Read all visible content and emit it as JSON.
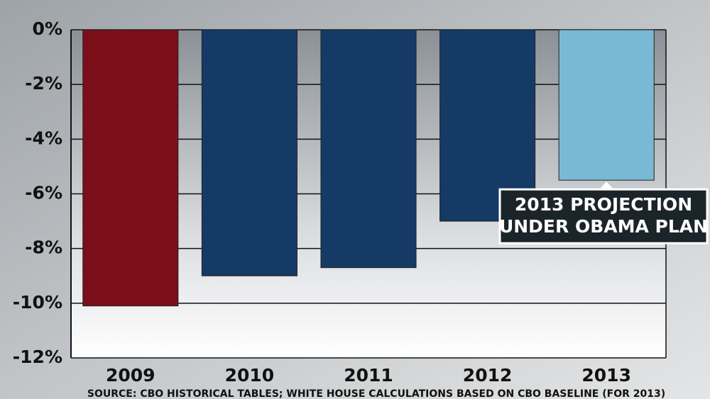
{
  "chart_data": {
    "type": "bar",
    "categories": [
      "2009",
      "2010",
      "2011",
      "2012",
      "2013"
    ],
    "values": [
      -10.1,
      -9.0,
      -8.7,
      -7.0,
      -5.5
    ],
    "colors": [
      "#7a0f1a",
      "#153a66",
      "#153a66",
      "#153a66",
      "#7ab9d5"
    ],
    "ylim": [
      -12,
      0
    ],
    "yticks": [
      {
        "value": 0,
        "label": "0%"
      },
      {
        "value": -2,
        "label": "-2%"
      },
      {
        "value": -4,
        "label": "-4%"
      },
      {
        "value": -6,
        "label": "-6%"
      },
      {
        "value": -8,
        "label": "-8%"
      },
      {
        "value": -10,
        "label": "-10%"
      },
      {
        "value": -12,
        "label": "-12%"
      }
    ],
    "grid": true,
    "annotation": [
      "2013 PROJECTION",
      "UNDER OBAMA PLAN"
    ],
    "source": "SOURCE: CBO HISTORICAL TABLES; WHITE HOUSE CALCULATIONS BASED ON CBO BASELINE (FOR 2013)"
  }
}
